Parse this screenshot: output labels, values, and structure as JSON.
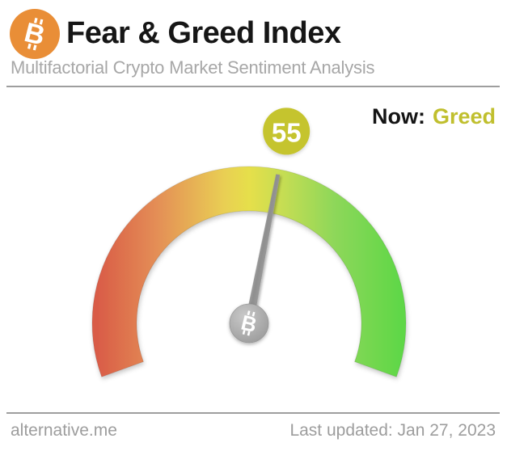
{
  "header": {
    "title": "Fear & Greed Index",
    "subtitle": "Multifactorial Crypto Market Sentiment Analysis",
    "logo": {
      "icon": "bitcoin-icon",
      "symbol": "B",
      "color": "#e98e37"
    }
  },
  "status": {
    "label": "Now:",
    "value": "Greed",
    "value_color": "#c0bf2e"
  },
  "gauge": {
    "value_display": "55",
    "badge_color": "#c5c42f",
    "needle_color": "#9a9a9a",
    "hub_icon": "bitcoin-icon"
  },
  "chart_data": {
    "type": "gauge",
    "title": "Fear & Greed Index",
    "value": 55,
    "min": 0,
    "max": 100,
    "classification": "Greed",
    "angle_span_deg": 220,
    "scale_colors": [
      "#d95c47",
      "#e48f56",
      "#e9cf53",
      "#e6df4b",
      "#c3dd53",
      "#8ed75a",
      "#5fd747"
    ],
    "legend_position": "none",
    "grid": false
  },
  "footer": {
    "site": "alternative.me",
    "last_updated": "Last updated: Jan 27, 2023"
  }
}
